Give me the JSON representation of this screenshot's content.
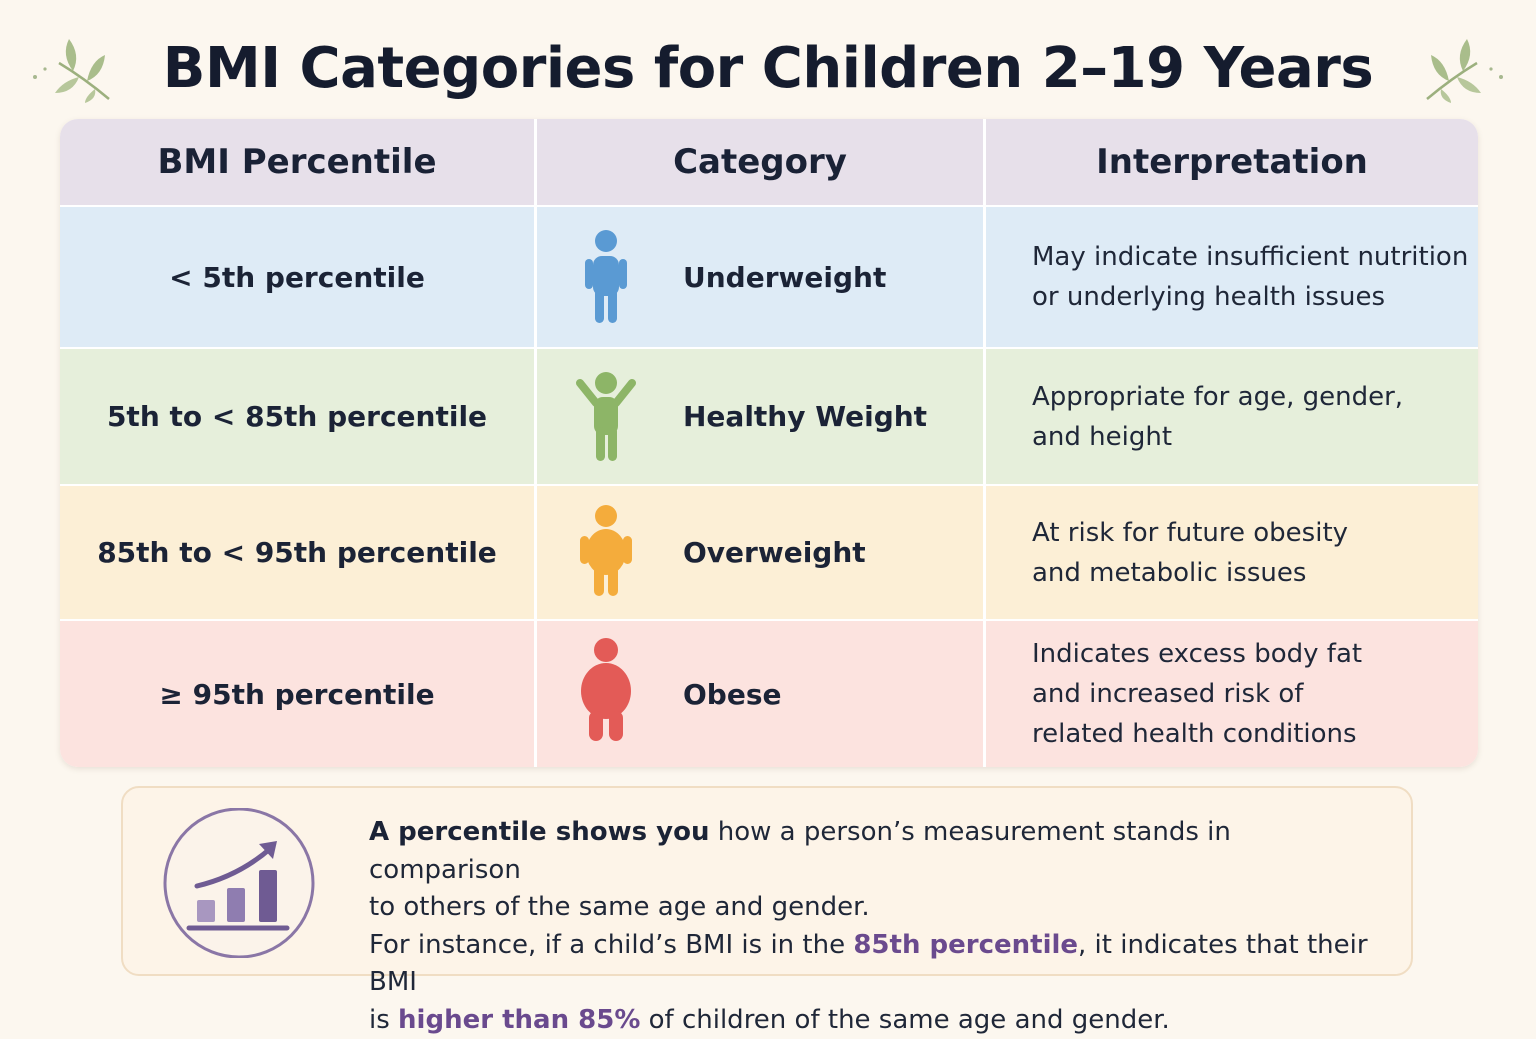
{
  "title": "BMI Categories for Children 2–19 Years",
  "table": {
    "headers": [
      "BMI Percentile",
      "Category",
      "Interpretation"
    ],
    "rows": [
      {
        "percentile": "< 5th percentile",
        "category": "Underweight",
        "icon": "child-figure-slim-icon",
        "color": "#5a9ad3",
        "interpretation": [
          "May indicate insufficient nutrition",
          "or underlying health issues"
        ]
      },
      {
        "percentile": "5th to < 85th percentile",
        "category": "Healthy Weight",
        "icon": "child-figure-arms-raised-icon",
        "color": "#8db567",
        "interpretation": [
          "Appropriate for age, gender,",
          "and height"
        ]
      },
      {
        "percentile": "85th to < 95th percentile",
        "category": "Overweight",
        "icon": "child-figure-stout-icon",
        "color": "#f4ac3c",
        "interpretation": [
          "At risk for future obesity",
          "and metabolic issues"
        ]
      },
      {
        "percentile": "≥ 95th percentile",
        "category": "Obese",
        "icon": "child-figure-heavy-icon",
        "color": "#e35b57",
        "interpretation": [
          "Indicates excess body fat",
          "and increased risk of",
          "related health conditions"
        ]
      }
    ]
  },
  "note": {
    "icon": "growth-chart-icon",
    "bold_lead": "A percentile shows you",
    "line1_rest": " how a person’s measurement stands in comparison",
    "line2": "to others of the same age and gender.",
    "line3_a": "For instance, if a child’s BMI is in the ",
    "line3_hl": "85th percentile",
    "line3_b": ", it indicates that their BMI",
    "line4_a": "is ",
    "line4_hl": "higher than 85%",
    "line4_b": " of children of the same age and gender."
  }
}
